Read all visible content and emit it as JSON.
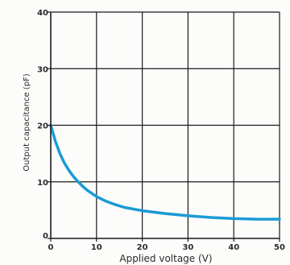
{
  "chart_data": {
    "type": "line",
    "title": "",
    "xlabel": "Applied  voltage  (V)",
    "ylabel": "Output  capacitance  (pF)",
    "xlim": [
      0,
      50
    ],
    "ylim": [
      0,
      40
    ],
    "xticks": [
      0,
      10,
      20,
      30,
      40,
      50
    ],
    "yticks": [
      0,
      10,
      20,
      30,
      40
    ],
    "xtick_labels": [
      "0",
      "10",
      "20",
      "30",
      "40",
      "50"
    ],
    "ytick_labels": [
      "0",
      "10",
      "20",
      "30",
      "40"
    ],
    "grid": true,
    "series": [
      {
        "color": "#1b9ad6",
        "x": [
          0,
          1,
          2,
          3,
          4,
          5,
          6,
          7,
          8,
          10,
          12,
          14,
          16,
          18,
          20,
          25,
          30,
          35,
          40,
          45,
          50
        ],
        "y": [
          20,
          17.2,
          15.0,
          13.3,
          12.0,
          10.9,
          10.0,
          9.2,
          8.5,
          7.4,
          6.6,
          6.0,
          5.5,
          5.2,
          4.9,
          4.4,
          4.0,
          3.7,
          3.5,
          3.4,
          3.4
        ]
      }
    ],
    "colors": {
      "axis": "#1a1a1a",
      "grid": "#1a1a1a",
      "line": "#1b9ad6",
      "text": "#2b2b2b"
    }
  }
}
